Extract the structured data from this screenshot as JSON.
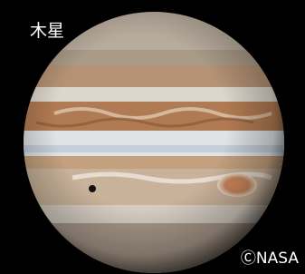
{
  "title": "木星",
  "credit": "ⒸNASA"
}
